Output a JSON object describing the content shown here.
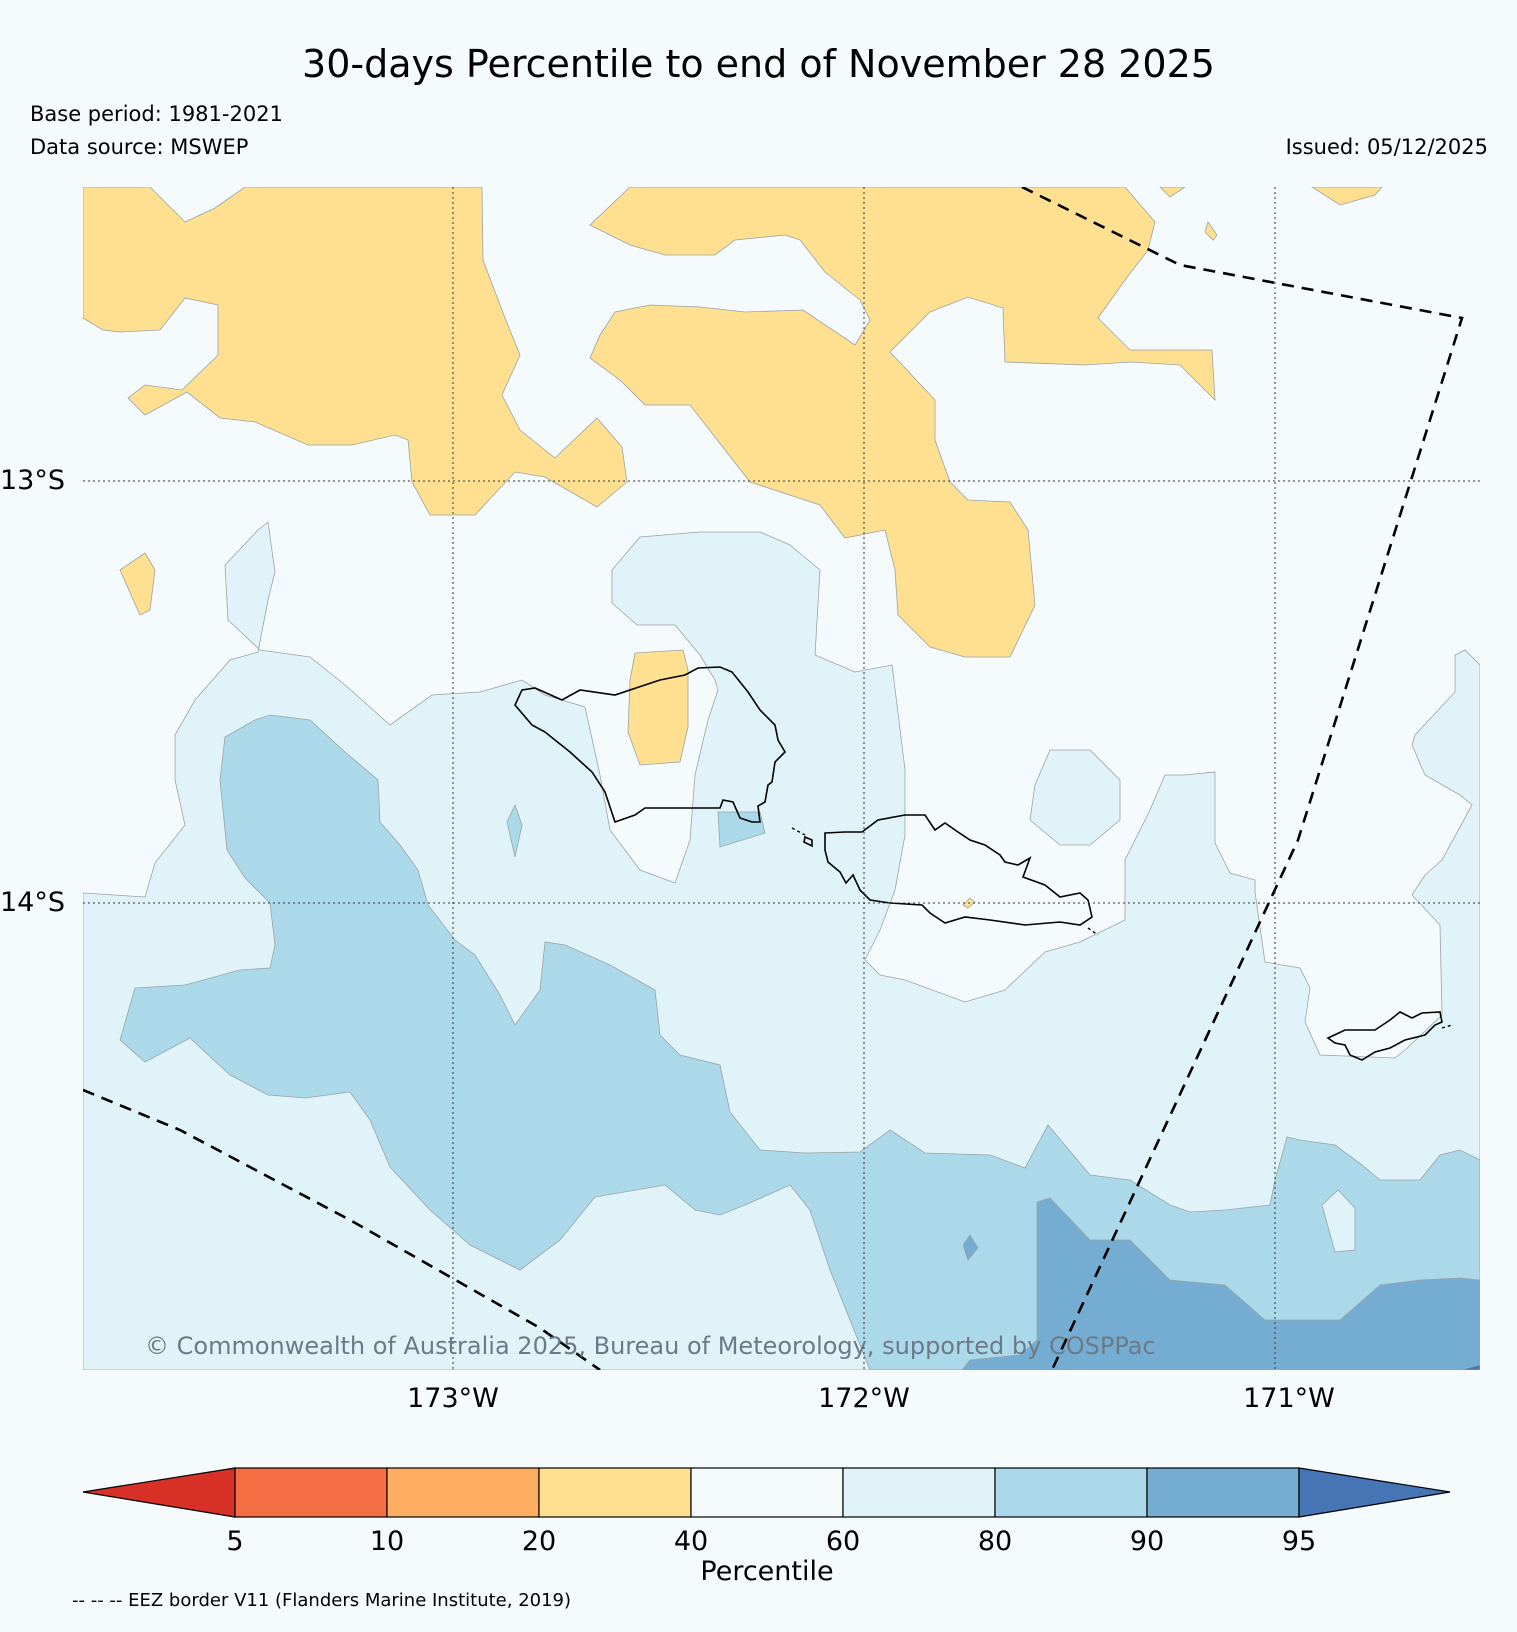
{
  "title": "30-days Percentile to end of November 28 2025",
  "base_period": "Base period: 1981-2021",
  "data_source": "Data source: MSWEP",
  "issued": "Issued: 05/12/2025",
  "lat_labels": [
    "13°S",
    "14°S"
  ],
  "lon_labels": [
    "173°W",
    "172°W",
    "171°W"
  ],
  "credit": "© Commonwealth of Australia 2025, Bureau of Meteorology, supported by COSPPac",
  "colorbar": {
    "label": "Percentile",
    "ticks": [
      "5",
      "10",
      "20",
      "40",
      "60",
      "80",
      "90",
      "95"
    ],
    "colors": [
      "#d73027",
      "#f46d43",
      "#fdae61",
      "#fee090",
      "#f5fafd",
      "#e0f3f8",
      "#abd9e9",
      "#74add1",
      "#4575b4"
    ]
  },
  "eez_note": "-- -- -- EEZ border V11 (Flanders Marine Institute, 2019)"
}
